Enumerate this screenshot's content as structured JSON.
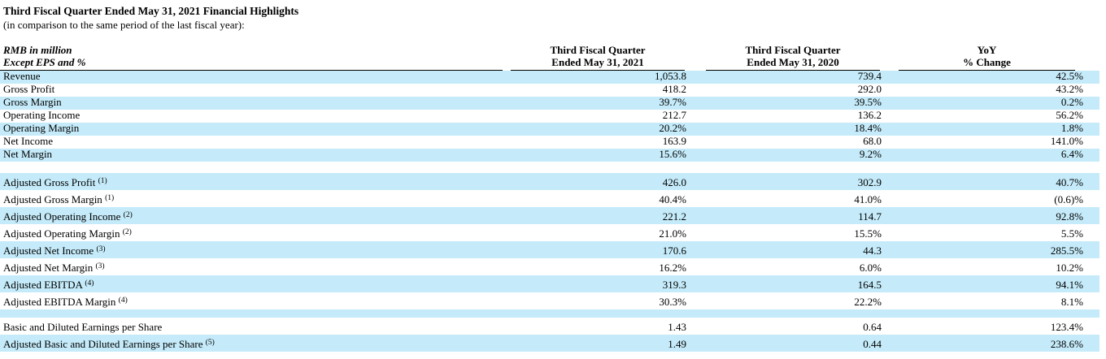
{
  "document": {
    "title": "Third Fiscal Quarter Ended May 31, 2021 Financial Highlights",
    "subtitle": "(in comparison to the same period of the last fiscal year):"
  },
  "colors": {
    "row_shade": "#C5EBFA",
    "text": "#000000",
    "rule": "#000000"
  },
  "table": {
    "header": {
      "col1": {
        "line1": "RMB in million",
        "line2": "Except EPS and %"
      },
      "col2": {
        "line1": "Third Fiscal Quarter",
        "line2": "Ended May 31, 2021"
      },
      "col3": {
        "line1": "Third Fiscal Quarter",
        "line2": "Ended May 31, 2020"
      },
      "col4": {
        "line1": "YoY",
        "line2": "% Change"
      }
    },
    "rows": [
      {
        "type": "data",
        "label": "Revenue",
        "sup": "",
        "v2021": "1,053.8",
        "v2020": "739.4",
        "yoy": "42.5%",
        "shaded": true,
        "tall": false
      },
      {
        "type": "data",
        "label": "Gross Profit",
        "sup": "",
        "v2021": "418.2",
        "v2020": "292.0",
        "yoy": "43.2%",
        "shaded": false,
        "tall": false
      },
      {
        "type": "data",
        "label": "Gross Margin",
        "sup": "",
        "v2021": "39.7%",
        "v2020": "39.5%",
        "yoy": "0.2%",
        "shaded": true,
        "tall": false
      },
      {
        "type": "data",
        "label": "Operating Income",
        "sup": "",
        "v2021": "212.7",
        "v2020": "136.2",
        "yoy": "56.2%",
        "shaded": false,
        "tall": false
      },
      {
        "type": "data",
        "label": "Operating Margin",
        "sup": "",
        "v2021": "20.2%",
        "v2020": "18.4%",
        "yoy": "1.8%",
        "shaded": true,
        "tall": false
      },
      {
        "type": "data",
        "label": "Net Income",
        "sup": "",
        "v2021": "163.9",
        "v2020": "68.0",
        "yoy": "141.0%",
        "shaded": false,
        "tall": false
      },
      {
        "type": "data",
        "label": "Net Margin",
        "sup": "",
        "v2021": "15.6%",
        "v2020": "9.2%",
        "yoy": "6.4%",
        "shaded": true,
        "tall": false
      },
      {
        "type": "spacer",
        "shaded": false,
        "height": 14
      },
      {
        "type": "data",
        "label": "Adjusted Gross Profit",
        "sup": "(1)",
        "v2021": "426.0",
        "v2020": "302.9",
        "yoy": "40.7%",
        "shaded": true,
        "tall": true
      },
      {
        "type": "data",
        "label": "Adjusted Gross Margin",
        "sup": "(1)",
        "v2021": "40.4%",
        "v2020": "41.0%",
        "yoy": "(0.6)%",
        "shaded": false,
        "tall": true
      },
      {
        "type": "data",
        "label": "Adjusted Operating Income",
        "sup": "(2)",
        "v2021": "221.2",
        "v2020": "114.7",
        "yoy": "92.8%",
        "shaded": true,
        "tall": true
      },
      {
        "type": "data",
        "label": "Adjusted Operating Margin",
        "sup": "(2)",
        "v2021": "21.0%",
        "v2020": "15.5%",
        "yoy": "5.5%",
        "shaded": false,
        "tall": true
      },
      {
        "type": "data",
        "label": "Adjusted Net Income",
        "sup": "(3)",
        "v2021": "170.6",
        "v2020": "44.3",
        "yoy": "285.5%",
        "shaded": true,
        "tall": true
      },
      {
        "type": "data",
        "label": "Adjusted Net Margin",
        "sup": "(3)",
        "v2021": "16.2%",
        "v2020": "6.0%",
        "yoy": "10.2%",
        "shaded": false,
        "tall": true
      },
      {
        "type": "data",
        "label": "Adjusted EBITDA",
        "sup": "(4)",
        "v2021": "319.3",
        "v2020": "164.5",
        "yoy": "94.1%",
        "shaded": true,
        "tall": true
      },
      {
        "type": "data",
        "label": "Adjusted EBITDA Margin",
        "sup": "(4)",
        "v2021": "30.3%",
        "v2020": "22.2%",
        "yoy": "8.1%",
        "shaded": false,
        "tall": true
      },
      {
        "type": "spacer",
        "shaded": true,
        "height": 10
      },
      {
        "type": "data",
        "label": "Basic and Diluted Earnings per Share",
        "sup": "",
        "v2021": "1.43",
        "v2020": "0.64",
        "yoy": "123.4%",
        "shaded": false,
        "tall": true
      },
      {
        "type": "data",
        "label": "Adjusted Basic and Diluted Earnings per Share",
        "sup": "(5)",
        "v2021": "1.49",
        "v2020": "0.44",
        "yoy": "238.6%",
        "shaded": true,
        "tall": true
      }
    ]
  }
}
